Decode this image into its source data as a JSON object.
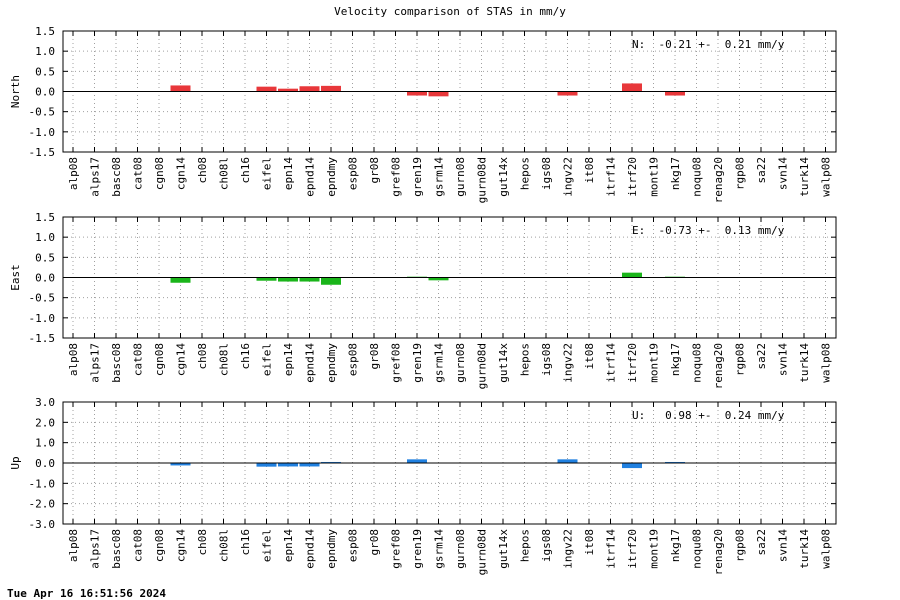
{
  "title": "Velocity comparison of STAS in mm/y",
  "footer": "Tue Apr 16 16:51:56 2024",
  "stations": [
    "alp08",
    "alps17",
    "basc08",
    "cat08",
    "cgn08",
    "cgn14",
    "ch08",
    "ch08l",
    "ch16",
    "eifel",
    "epn14",
    "epnd14",
    "epndmy",
    "esp08",
    "gr08",
    "gref08",
    "gren19",
    "gsrm14",
    "gurn08",
    "gurn08d",
    "gut14x",
    "hepos",
    "igs08",
    "ingv22",
    "it08",
    "itrf14",
    "itrf20",
    "mont19",
    "nkg17",
    "noqu08",
    "renag20",
    "rgp08",
    "sa22",
    "svn14",
    "turk14",
    "walp08"
  ],
  "colors": {
    "north": "#e8373a",
    "east": "#1ab51a",
    "up": "#2080e0",
    "grid": "#a0a0a0"
  },
  "chart_data": [
    {
      "type": "bar",
      "ylabel": "North",
      "ylim": [
        -1.5,
        1.5
      ],
      "yticks": [
        1.5,
        1.0,
        0.5,
        0.0,
        -0.5,
        -1.0,
        -1.5
      ],
      "ytick_labels": [
        "1.5",
        "1.0",
        "0.5",
        "0.0",
        "-0.5",
        "-1.0",
        "-1.5"
      ],
      "grid": true,
      "annotation": "N:  -0.21 +-  0.21 mm/y",
      "color_key": "north",
      "values": [
        0,
        0,
        0,
        0,
        0,
        0.15,
        0,
        0,
        0,
        0.12,
        0.07,
        0.13,
        0.14,
        0,
        0,
        0,
        -0.1,
        -0.12,
        0,
        0,
        0,
        0,
        0,
        -0.1,
        0,
        0,
        0.2,
        0,
        -0.1,
        0,
        0,
        0,
        0,
        0,
        0,
        0
      ]
    },
    {
      "type": "bar",
      "ylabel": "East",
      "ylim": [
        -1.5,
        1.5
      ],
      "yticks": [
        1.5,
        1.0,
        0.5,
        0.0,
        -0.5,
        -1.0,
        -1.5
      ],
      "ytick_labels": [
        "1.5",
        "1.0",
        "0.5",
        "0.0",
        "-0.5",
        "-1.0",
        "-1.5"
      ],
      "grid": true,
      "annotation": "E:  -0.73 +-  0.13 mm/y",
      "color_key": "east",
      "values": [
        0,
        0,
        0,
        0,
        0,
        -0.13,
        0,
        0,
        0,
        -0.08,
        -0.1,
        -0.1,
        -0.18,
        0,
        0,
        0,
        0.02,
        -0.07,
        0,
        0,
        0,
        0,
        0,
        0,
        0,
        0,
        0.12,
        0,
        0.02,
        0,
        0,
        0,
        0,
        0,
        0,
        0
      ]
    },
    {
      "type": "bar",
      "ylabel": "Up",
      "ylim": [
        -3.0,
        3.0
      ],
      "yticks": [
        3.0,
        2.0,
        1.0,
        0.0,
        -1.0,
        -2.0,
        -3.0
      ],
      "ytick_labels": [
        "3.0",
        "2.0",
        "1.0",
        "0.0",
        "-1.0",
        "-2.0",
        "-3.0"
      ],
      "grid": true,
      "annotation": "U:   0.98 +-  0.24 mm/y",
      "color_key": "up",
      "values": [
        0,
        0,
        0,
        0,
        0,
        -0.12,
        0,
        0,
        0,
        -0.18,
        -0.17,
        -0.17,
        0.05,
        0,
        0,
        0,
        0.18,
        0,
        0,
        0,
        0,
        0,
        0,
        0.18,
        0,
        0,
        -0.25,
        0,
        0.05,
        0,
        0,
        0,
        0,
        0,
        0,
        0
      ]
    }
  ]
}
